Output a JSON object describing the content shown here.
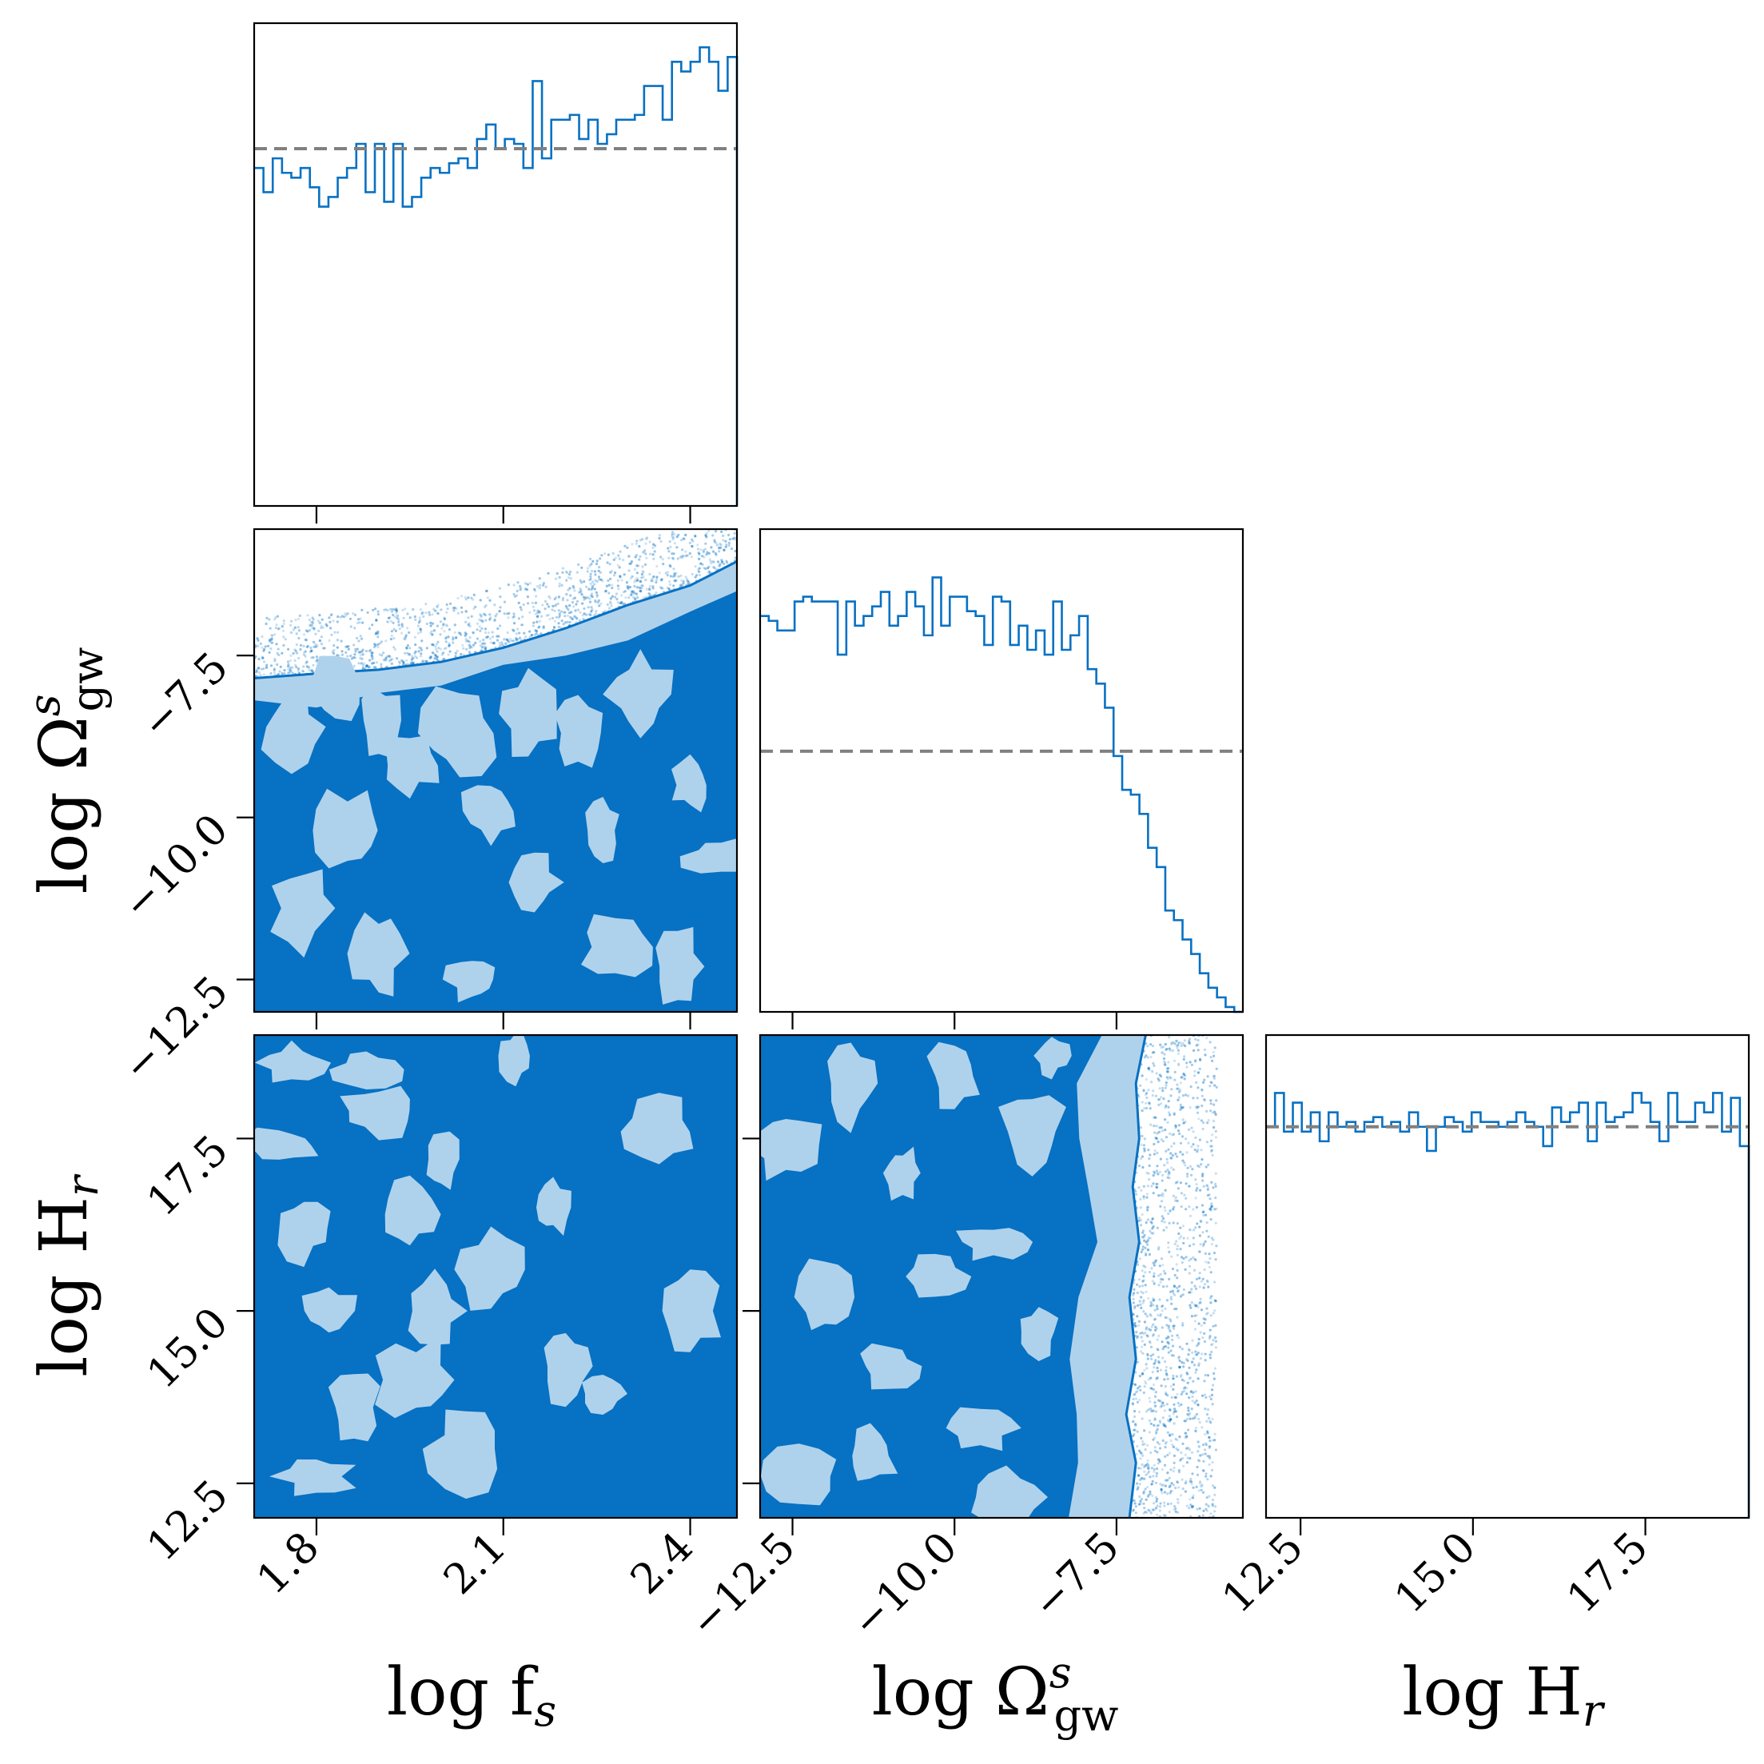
{
  "figure": {
    "background": "#ffffff",
    "frame_color": "#000000",
    "fill_dark": "#0771c3",
    "fill_light": "#afd2ec",
    "outline_color": "#0771c3",
    "truth_color": "#808080"
  },
  "chart_data": {
    "type": "corner",
    "parameters": [
      {
        "name": "log_fs",
        "label_text": "log f",
        "label_sub": "s",
        "range": [
          1.7,
          2.475
        ],
        "ticks": [
          1.8,
          2.1,
          2.4
        ],
        "tick_labels": [
          "1.8",
          "2.1",
          "2.4"
        ]
      },
      {
        "name": "log_Omega_gw_s",
        "label_text": "log Ω",
        "label_sub": "gw",
        "label_sup": "s",
        "range": [
          -13.0,
          -5.55
        ],
        "ticks": [
          -12.5,
          -10.0,
          -7.5
        ],
        "tick_labels": [
          "−12.5",
          "−10.0",
          "−7.5"
        ]
      },
      {
        "name": "log_H_r",
        "label_text": "log H",
        "label_sub": "r",
        "range": [
          12.0,
          19.0
        ],
        "ticks": [
          12.5,
          15.0,
          17.5
        ],
        "tick_labels": [
          "12.5",
          "15.0",
          "17.5"
        ]
      }
    ],
    "histograms": [
      {
        "parameter": "log_fs",
        "prior_level": 0.74,
        "relative_heights": [
          0.7,
          0.65,
          0.72,
          0.69,
          0.68,
          0.7,
          0.66,
          0.62,
          0.64,
          0.68,
          0.7,
          0.75,
          0.65,
          0.75,
          0.63,
          0.75,
          0.62,
          0.64,
          0.68,
          0.7,
          0.69,
          0.71,
          0.72,
          0.7,
          0.76,
          0.79,
          0.74,
          0.76,
          0.75,
          0.7,
          0.88,
          0.72,
          0.8,
          0.8,
          0.81,
          0.76,
          0.8,
          0.75,
          0.77,
          0.8,
          0.8,
          0.81,
          0.87,
          0.87,
          0.8,
          0.92,
          0.9,
          0.92,
          0.95,
          0.92,
          0.86,
          0.93
        ]
      },
      {
        "parameter": "log_Omega_gw_s",
        "prior_level": 0.54,
        "relative_heights": [
          0.82,
          0.81,
          0.79,
          0.79,
          0.85,
          0.86,
          0.85,
          0.85,
          0.85,
          0.74,
          0.85,
          0.8,
          0.82,
          0.84,
          0.87,
          0.8,
          0.82,
          0.87,
          0.84,
          0.78,
          0.9,
          0.8,
          0.86,
          0.86,
          0.83,
          0.82,
          0.76,
          0.86,
          0.85,
          0.76,
          0.8,
          0.75,
          0.79,
          0.74,
          0.85,
          0.75,
          0.78,
          0.82,
          0.71,
          0.68,
          0.63,
          0.53,
          0.46,
          0.45,
          0.41,
          0.34,
          0.3,
          0.21,
          0.19,
          0.15,
          0.12,
          0.08,
          0.05,
          0.03,
          0.01,
          0.0
        ]
      },
      {
        "parameter": "log_H_r",
        "prior_level": 0.81,
        "relative_heights": [
          0.81,
          0.88,
          0.8,
          0.86,
          0.8,
          0.84,
          0.78,
          0.84,
          0.81,
          0.82,
          0.8,
          0.82,
          0.83,
          0.81,
          0.82,
          0.8,
          0.84,
          0.81,
          0.76,
          0.81,
          0.83,
          0.82,
          0.8,
          0.84,
          0.82,
          0.82,
          0.81,
          0.82,
          0.84,
          0.82,
          0.81,
          0.77,
          0.85,
          0.82,
          0.84,
          0.86,
          0.78,
          0.86,
          0.82,
          0.83,
          0.84,
          0.88,
          0.86,
          0.82,
          0.78,
          0.88,
          0.82,
          0.82,
          0.86,
          0.84,
          0.88,
          0.8,
          0.87,
          0.77
        ]
      }
    ],
    "density_panels": [
      {
        "x": "log_fs",
        "y": "log_Omega_gw_s",
        "edge_profile": [
          [
            1.7,
            -7.85
          ],
          [
            1.8,
            -7.78
          ],
          [
            1.9,
            -7.72
          ],
          [
            2.0,
            -7.6
          ],
          [
            2.1,
            -7.38
          ],
          [
            2.2,
            -7.08
          ],
          [
            2.3,
            -6.72
          ],
          [
            2.4,
            -6.42
          ],
          [
            2.475,
            -6.05
          ]
        ],
        "scatter_band_above_edge": 0.95,
        "light_blobs": [
          [
            1.76,
            -8.6
          ],
          [
            1.83,
            -8.0
          ],
          [
            1.9,
            -8.5
          ],
          [
            1.95,
            -9.2
          ],
          [
            2.03,
            -8.7
          ],
          [
            2.08,
            -9.9
          ],
          [
            2.14,
            -8.4
          ],
          [
            2.22,
            -8.7
          ],
          [
            2.32,
            -8.1
          ],
          [
            2.4,
            -9.5
          ],
          [
            1.78,
            -11.4
          ],
          [
            1.9,
            -12.1
          ],
          [
            2.05,
            -12.5
          ],
          [
            2.15,
            -11.0
          ],
          [
            2.28,
            -12.0
          ],
          [
            2.38,
            -12.3
          ],
          [
            2.45,
            -10.6
          ],
          [
            1.85,
            -10.2
          ],
          [
            2.26,
            -10.2
          ]
        ]
      },
      {
        "x": "log_fs",
        "y": "log_H_r",
        "edge_profile": [],
        "scatter_band_above_edge": 0.0,
        "light_blobs": [
          [
            1.74,
            17.4
          ],
          [
            1.78,
            16.2
          ],
          [
            1.82,
            15.0
          ],
          [
            1.86,
            13.6
          ],
          [
            1.9,
            17.9
          ],
          [
            1.95,
            16.4
          ],
          [
            1.99,
            15.0
          ],
          [
            2.04,
            13.0
          ],
          [
            1.8,
            12.6
          ],
          [
            1.88,
            18.5
          ],
          [
            2.0,
            17.2
          ],
          [
            2.08,
            15.6
          ],
          [
            2.12,
            18.7
          ],
          [
            2.18,
            16.5
          ],
          [
            2.26,
            13.8
          ],
          [
            2.35,
            17.6
          ],
          [
            2.4,
            15.0
          ],
          [
            2.2,
            14.2
          ],
          [
            1.96,
            14.0
          ],
          [
            1.76,
            18.6
          ]
        ]
      },
      {
        "x": "log_Omega_gw_s",
        "y": "log_H_r",
        "edge_profile": [
          [
            -7.05,
            19.0
          ],
          [
            -7.2,
            18.3
          ],
          [
            -7.15,
            17.5
          ],
          [
            -7.25,
            16.8
          ],
          [
            -7.15,
            16.0
          ],
          [
            -7.3,
            15.2
          ],
          [
            -7.2,
            14.3
          ],
          [
            -7.35,
            13.5
          ],
          [
            -7.2,
            12.8
          ],
          [
            -7.3,
            12.0
          ]
        ],
        "scatter_band_above_edge": 1.3,
        "light_blobs": [
          [
            -12.6,
            17.4
          ],
          [
            -11.6,
            18.3
          ],
          [
            -10.8,
            17.0
          ],
          [
            -10.0,
            18.4
          ],
          [
            -9.4,
            16.0
          ],
          [
            -8.8,
            17.6
          ],
          [
            -12.0,
            15.2
          ],
          [
            -11.0,
            14.2
          ],
          [
            -10.3,
            15.5
          ],
          [
            -9.6,
            13.3
          ],
          [
            -12.4,
            12.6
          ],
          [
            -11.3,
            12.9
          ],
          [
            -8.7,
            14.7
          ],
          [
            -9.2,
            12.3
          ],
          [
            -8.5,
            18.7
          ]
        ]
      }
    ]
  }
}
